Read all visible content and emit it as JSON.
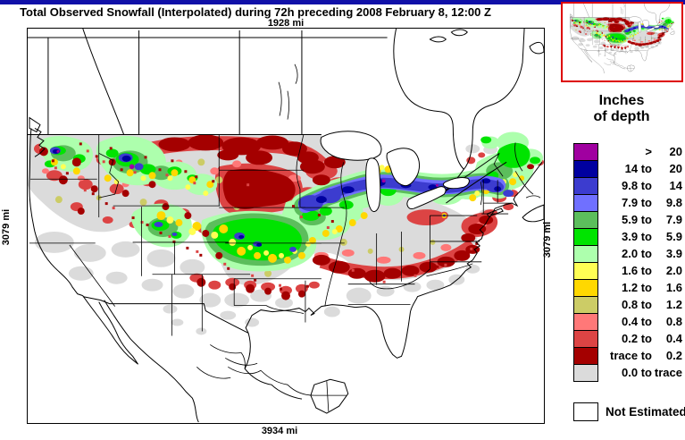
{
  "header": {
    "title": "Total Observed Snowfall (Interpolated) during 72h preceding 2008 February 8, 12:00 Z"
  },
  "map": {
    "scale_top": "1928 mi",
    "scale_bottom": "3934 mi",
    "scale_left": "3079 mi",
    "scale_right": "3079 mi"
  },
  "inset": {
    "border_color": "#DD0000"
  },
  "colors": {
    "top_bar": "#1010A8"
  },
  "legend": {
    "title_line1": "Inches",
    "title_line2": "of depth",
    "entries": [
      {
        "from": ">",
        "to": "20",
        "color": "#A000A0"
      },
      {
        "from": "14 to",
        "to": "20",
        "color": "#0000A0"
      },
      {
        "from": "9.8 to",
        "to": "14",
        "color": "#3C3CCF"
      },
      {
        "from": "7.9 to",
        "to": "9.8",
        "color": "#7070FF"
      },
      {
        "from": "5.9 to",
        "to": "7.9",
        "color": "#5CBE5C"
      },
      {
        "from": "3.9 to",
        "to": "5.9",
        "color": "#00E400"
      },
      {
        "from": "2.0 to",
        "to": "3.9",
        "color": "#ADFFAD"
      },
      {
        "from": "1.6 to",
        "to": "2.0",
        "color": "#FFFF54"
      },
      {
        "from": "1.2 to",
        "to": "1.6",
        "color": "#FFD800"
      },
      {
        "from": "0.8 to",
        "to": "1.2",
        "color": "#CCCC66"
      },
      {
        "from": "0.4 to",
        "to": "0.8",
        "color": "#FF7878"
      },
      {
        "from": "0.2 to",
        "to": "0.4",
        "color": "#DC4444"
      },
      {
        "from": "trace to",
        "to": "0.2",
        "color": "#A40000"
      },
      {
        "from": "0.0 to",
        "to": "trace",
        "color": "#DBDBDB"
      }
    ],
    "not_estimated": {
      "label": "Not Estimated",
      "color": "#FFFFFF"
    }
  }
}
